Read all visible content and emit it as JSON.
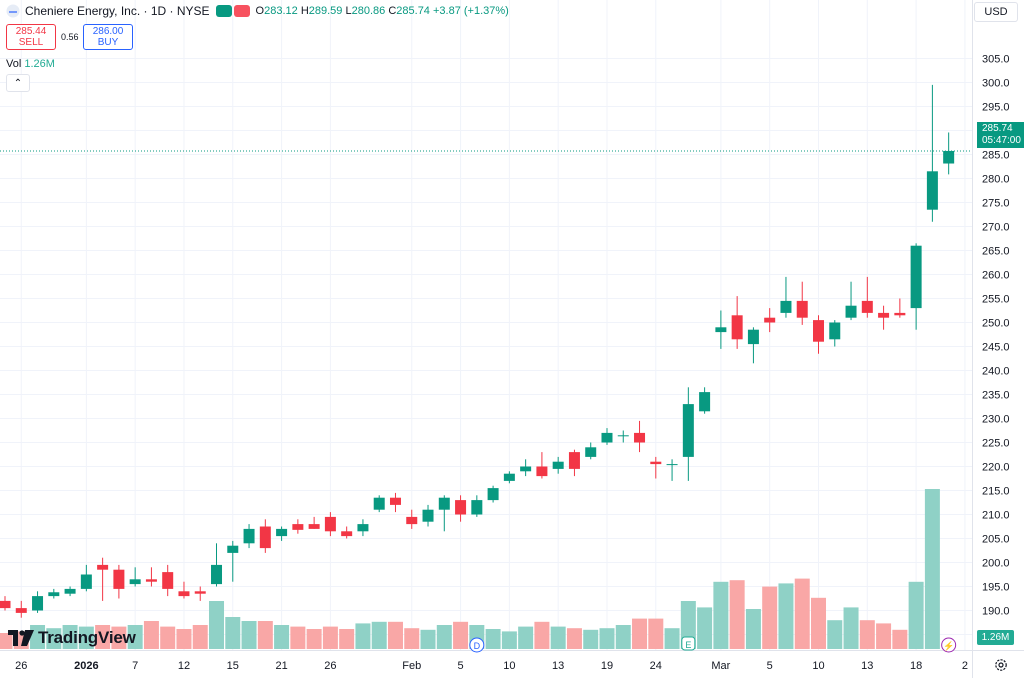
{
  "header": {
    "symbol_title": "Cheniere Energy, Inc. · 1D · NYSE",
    "ohlc": {
      "o_label": "O",
      "o": "283.12",
      "h_label": "H",
      "h": "289.59",
      "l_label": "L",
      "l": "280.86",
      "c_label": "C",
      "c": "285.74",
      "change": "+3.87 (+1.37%)"
    },
    "dots_colors": [
      "#089981",
      "#f7525f"
    ]
  },
  "trade": {
    "sell_price": "285.44",
    "sell_label": "SELL",
    "spread": "0.56",
    "buy_price": "286.00",
    "buy_label": "BUY"
  },
  "volume": {
    "label": "Vol",
    "value": "1.26M"
  },
  "collapse_glyph": "⌃",
  "currency": "USD",
  "last_price": {
    "price": "285.74",
    "countdown": "05:47:00"
  },
  "volume_tag": "1.26M",
  "logo_text": "TradingView",
  "colors": {
    "up": "#089981",
    "down": "#f23645",
    "vol_up": "#8fd1c6",
    "vol_down": "#f9a7a6",
    "grid": "#f0f3fa"
  },
  "icons": [
    "symbol-icon",
    "gear-icon",
    "dividend-marker-icon",
    "earnings-marker-icon",
    "split-marker-icon",
    "tradingview-logo-icon"
  ],
  "chart_data": {
    "type": "candlestick",
    "title": "Cheniere Energy, Inc. · 1D · NYSE",
    "ylim": [
      180,
      308
    ],
    "y_ticks": [
      185,
      190,
      195,
      200,
      205,
      210,
      215,
      220,
      225,
      230,
      235,
      240,
      245,
      250,
      255,
      260,
      265,
      270,
      275,
      280,
      285,
      290,
      295,
      300,
      305
    ],
    "x_tick_labels": [
      {
        "label": "26",
        "index": 1,
        "bold": false
      },
      {
        "label": "2026",
        "index": 5,
        "bold": true
      },
      {
        "label": "7",
        "index": 8,
        "bold": false
      },
      {
        "label": "12",
        "index": 11,
        "bold": false
      },
      {
        "label": "15",
        "index": 14,
        "bold": false
      },
      {
        "label": "21",
        "index": 17,
        "bold": false
      },
      {
        "label": "26",
        "index": 20,
        "bold": false
      },
      {
        "label": "Feb",
        "index": 25,
        "bold": false
      },
      {
        "label": "5",
        "index": 28,
        "bold": false
      },
      {
        "label": "10",
        "index": 31,
        "bold": false
      },
      {
        "label": "13",
        "index": 34,
        "bold": false
      },
      {
        "label": "19",
        "index": 37,
        "bold": false
      },
      {
        "label": "24",
        "index": 40,
        "bold": false
      },
      {
        "label": "Mar",
        "index": 44,
        "bold": false
      },
      {
        "label": "5",
        "index": 47,
        "bold": false
      },
      {
        "label": "10",
        "index": 50,
        "bold": false
      },
      {
        "label": "13",
        "index": 53,
        "bold": false
      },
      {
        "label": "18",
        "index": 56,
        "bold": false
      },
      {
        "label": "2",
        "index": 59,
        "bold": false
      }
    ],
    "candles": [
      {
        "o": 192.0,
        "h": 193.0,
        "l": 190.0,
        "c": 190.5
      },
      {
        "o": 190.5,
        "h": 192.0,
        "l": 188.5,
        "c": 189.5
      },
      {
        "o": 190.0,
        "h": 194.0,
        "l": 189.5,
        "c": 193.0
      },
      {
        "o": 193.0,
        "h": 194.5,
        "l": 192.5,
        "c": 193.8
      },
      {
        "o": 193.5,
        "h": 195.0,
        "l": 193.0,
        "c": 194.5
      },
      {
        "o": 194.5,
        "h": 199.5,
        "l": 194.0,
        "c": 197.5
      },
      {
        "o": 199.5,
        "h": 201.0,
        "l": 192.0,
        "c": 198.5
      },
      {
        "o": 198.5,
        "h": 199.5,
        "l": 192.5,
        "c": 194.5
      },
      {
        "o": 195.5,
        "h": 199.0,
        "l": 195.0,
        "c": 196.5
      },
      {
        "o": 196.5,
        "h": 199.0,
        "l": 195.0,
        "c": 196.0
      },
      {
        "o": 198.0,
        "h": 199.5,
        "l": 193.0,
        "c": 194.5
      },
      {
        "o": 194.0,
        "h": 196.0,
        "l": 192.5,
        "c": 193.0
      },
      {
        "o": 194.0,
        "h": 195.0,
        "l": 192.0,
        "c": 193.5
      },
      {
        "o": 195.5,
        "h": 204.0,
        "l": 195.0,
        "c": 199.5
      },
      {
        "o": 202.0,
        "h": 204.5,
        "l": 196.0,
        "c": 203.5
      },
      {
        "o": 204.0,
        "h": 208.0,
        "l": 203.0,
        "c": 207.0
      },
      {
        "o": 207.5,
        "h": 209.0,
        "l": 202.0,
        "c": 203.0
      },
      {
        "o": 205.5,
        "h": 207.5,
        "l": 204.5,
        "c": 207.0
      },
      {
        "o": 208.0,
        "h": 209.0,
        "l": 206.0,
        "c": 206.8
      },
      {
        "o": 208.0,
        "h": 209.5,
        "l": 207.0,
        "c": 207.0
      },
      {
        "o": 209.5,
        "h": 210.5,
        "l": 205.5,
        "c": 206.5
      },
      {
        "o": 206.5,
        "h": 207.5,
        "l": 205.0,
        "c": 205.5
      },
      {
        "o": 206.5,
        "h": 209.0,
        "l": 205.5,
        "c": 208.0
      },
      {
        "o": 211.0,
        "h": 214.0,
        "l": 210.5,
        "c": 213.5
      },
      {
        "o": 213.5,
        "h": 214.5,
        "l": 210.5,
        "c": 212.0
      },
      {
        "o": 209.5,
        "h": 211.0,
        "l": 207.0,
        "c": 208.0
      },
      {
        "o": 208.5,
        "h": 212.0,
        "l": 207.5,
        "c": 211.0
      },
      {
        "o": 211.0,
        "h": 214.0,
        "l": 206.5,
        "c": 213.5
      },
      {
        "o": 213.0,
        "h": 214.0,
        "l": 208.5,
        "c": 210.0
      },
      {
        "o": 210.0,
        "h": 214.0,
        "l": 209.5,
        "c": 213.0
      },
      {
        "o": 213.0,
        "h": 216.0,
        "l": 212.5,
        "c": 215.5
      },
      {
        "o": 217.0,
        "h": 219.0,
        "l": 216.5,
        "c": 218.5
      },
      {
        "o": 219.0,
        "h": 221.5,
        "l": 218.0,
        "c": 220.0
      },
      {
        "o": 220.0,
        "h": 223.0,
        "l": 217.5,
        "c": 218.0
      },
      {
        "o": 219.5,
        "h": 222.0,
        "l": 218.5,
        "c": 221.0
      },
      {
        "o": 223.0,
        "h": 223.5,
        "l": 218.0,
        "c": 219.5
      },
      {
        "o": 222.0,
        "h": 225.0,
        "l": 221.5,
        "c": 224.0
      },
      {
        "o": 225.0,
        "h": 228.0,
        "l": 224.5,
        "c": 227.0
      },
      {
        "o": 226.5,
        "h": 227.5,
        "l": 225.0,
        "c": 226.5
      },
      {
        "o": 227.0,
        "h": 229.5,
        "l": 223.0,
        "c": 225.0
      },
      {
        "o": 221.0,
        "h": 222.0,
        "l": 217.5,
        "c": 220.5
      },
      {
        "o": 220.5,
        "h": 221.5,
        "l": 217.0,
        "c": 220.5
      },
      {
        "o": 222.0,
        "h": 236.5,
        "l": 217.0,
        "c": 233.0
      },
      {
        "o": 231.5,
        "h": 236.5,
        "l": 231.0,
        "c": 235.5
      },
      {
        "o": 248.0,
        "h": 252.5,
        "l": 244.5,
        "c": 249.0
      },
      {
        "o": 251.5,
        "h": 255.5,
        "l": 244.5,
        "c": 246.5
      },
      {
        "o": 245.5,
        "h": 249.0,
        "l": 241.5,
        "c": 248.5
      },
      {
        "o": 251.0,
        "h": 253.0,
        "l": 248.0,
        "c": 250.0
      },
      {
        "o": 252.0,
        "h": 259.5,
        "l": 251.0,
        "c": 254.5
      },
      {
        "o": 254.5,
        "h": 258.5,
        "l": 249.5,
        "c": 251.0
      },
      {
        "o": 250.5,
        "h": 251.5,
        "l": 243.5,
        "c": 246.0
      },
      {
        "o": 246.5,
        "h": 250.5,
        "l": 245.0,
        "c": 250.0
      },
      {
        "o": 251.0,
        "h": 258.5,
        "l": 250.5,
        "c": 253.5
      },
      {
        "o": 254.5,
        "h": 259.5,
        "l": 251.0,
        "c": 252.0
      },
      {
        "o": 252.0,
        "h": 253.5,
        "l": 248.5,
        "c": 251.0
      },
      {
        "o": 252.0,
        "h": 255.0,
        "l": 251.0,
        "c": 251.5
      },
      {
        "o": 253.0,
        "h": 266.5,
        "l": 248.5,
        "c": 266.0
      },
      {
        "o": 273.5,
        "h": 299.5,
        "l": 271.0,
        "c": 281.5
      },
      {
        "o": 283.12,
        "h": 289.59,
        "l": 280.86,
        "c": 285.74
      }
    ],
    "volume": {
      "unit": "relative",
      "values": [
        2.0,
        2.2,
        3.0,
        2.6,
        3.0,
        2.8,
        3.0,
        2.8,
        3.0,
        3.5,
        2.8,
        2.5,
        3.0,
        6.0,
        4.0,
        3.5,
        3.5,
        3.0,
        2.8,
        2.5,
        2.8,
        2.5,
        3.2,
        3.4,
        3.4,
        2.6,
        2.4,
        3.0,
        3.4,
        3.0,
        2.5,
        2.2,
        2.8,
        3.4,
        2.8,
        2.6,
        2.4,
        2.6,
        3.0,
        3.8,
        3.8,
        2.6,
        6.0,
        5.2,
        8.4,
        8.6,
        5.0,
        7.8,
        8.2,
        8.8,
        6.4,
        3.6,
        5.2,
        3.6,
        3.2,
        2.4,
        8.4,
        20.0,
        null
      ],
      "colors_up_down": "per candle"
    },
    "last_price_line": 285.74,
    "markers": [
      {
        "type": "dividend",
        "label": "D",
        "index": 29
      },
      {
        "type": "earnings",
        "label": "E",
        "index": 42
      },
      {
        "type": "split",
        "label": "⚡",
        "index": 58
      }
    ]
  }
}
